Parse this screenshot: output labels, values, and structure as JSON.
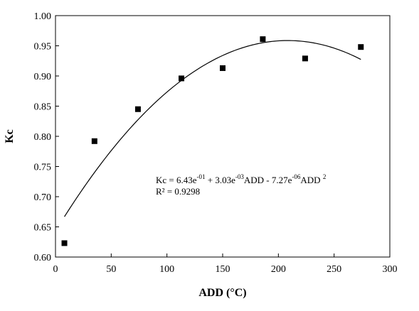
{
  "chart_data": {
    "type": "scatter",
    "title": "",
    "xlabel": "ADD (°C)",
    "ylabel": "Kc",
    "xlim": [
      0,
      300
    ],
    "ylim": [
      0.6,
      1.0
    ],
    "xticks": [
      0,
      50,
      100,
      150,
      200,
      250,
      300
    ],
    "yticks": [
      0.6,
      0.65,
      0.7,
      0.75,
      0.8,
      0.85,
      0.9,
      0.95,
      1.0
    ],
    "xtick_labels": [
      "0",
      "50",
      "100",
      "150",
      "200",
      "250",
      "300"
    ],
    "ytick_labels": [
      "0.60",
      "0.65",
      "0.70",
      "0.75",
      "0.80",
      "0.85",
      "0.90",
      "0.95",
      "1.00"
    ],
    "grid": false,
    "legend": "none",
    "marker_color": "#000000",
    "line_color": "#000000",
    "points": [
      {
        "x": 8,
        "y": 0.623
      },
      {
        "x": 35,
        "y": 0.792
      },
      {
        "x": 74,
        "y": 0.845
      },
      {
        "x": 113,
        "y": 0.896
      },
      {
        "x": 150,
        "y": 0.913
      },
      {
        "x": 186,
        "y": 0.961
      },
      {
        "x": 224,
        "y": 0.929
      },
      {
        "x": 274,
        "y": 0.948
      }
    ],
    "fit": {
      "type": "polynomial",
      "coefficients": [
        0.643,
        0.00303,
        -7.27e-06
      ],
      "x_range": [
        8,
        274
      ]
    },
    "annotation": {
      "equation": {
        "p1": "Kc = 6.43e",
        "s1": "-01",
        "p2": " + 3.03e",
        "s2": "-03",
        "p3": "ADD - 7.27e",
        "s3": "-06",
        "p4": "ADD ",
        "s4": "2"
      },
      "r2": "R² = 0.9298"
    }
  }
}
